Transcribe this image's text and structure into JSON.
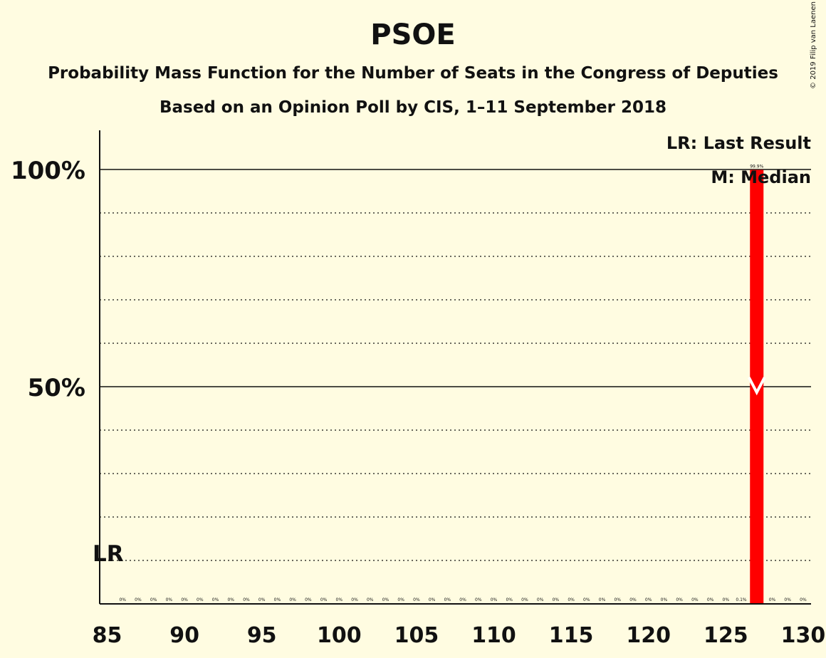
{
  "chart_data": {
    "type": "bar",
    "title": "PSOE",
    "subtitle_lines": [
      "Probability Mass Function for the Number of Seats in the Congress of Deputies",
      "Based on an Opinion Poll by CIS, 1–11 September 2018"
    ],
    "copyright": "© 2019 Filip van Laenen",
    "xlim": [
      85,
      130
    ],
    "ylim": [
      0,
      100
    ],
    "x_ticks": [
      85,
      90,
      95,
      100,
      105,
      110,
      115,
      120,
      125,
      130
    ],
    "y_ticks": [
      {
        "value": 50,
        "label": "50%"
      },
      {
        "value": 100,
        "label": "100%"
      }
    ],
    "gridlines_dotted": [
      10,
      20,
      30,
      40,
      60,
      70,
      80,
      90
    ],
    "categories": [
      86,
      87,
      88,
      89,
      90,
      91,
      92,
      93,
      94,
      95,
      96,
      97,
      98,
      99,
      100,
      101,
      102,
      103,
      104,
      105,
      106,
      107,
      108,
      109,
      110,
      111,
      112,
      113,
      114,
      115,
      116,
      117,
      118,
      119,
      120,
      121,
      122,
      123,
      124,
      125,
      126,
      127,
      128,
      129,
      130
    ],
    "values": [
      0,
      0,
      0,
      0,
      0,
      0,
      0,
      0,
      0,
      0,
      0,
      0,
      0,
      0,
      0,
      0,
      0,
      0,
      0,
      0,
      0,
      0,
      0,
      0,
      0,
      0,
      0,
      0,
      0,
      0,
      0,
      0,
      0,
      0,
      0,
      0,
      0,
      0,
      0,
      0,
      0.1,
      99.9,
      0,
      0,
      0
    ],
    "bar_labels": [
      "0%",
      "0%",
      "0%",
      "0%",
      "0%",
      "0%",
      "0%",
      "0%",
      "0%",
      "0%",
      "0%",
      "0%",
      "0%",
      "0%",
      "0%",
      "0%",
      "0%",
      "0%",
      "0%",
      "0%",
      "0%",
      "0%",
      "0%",
      "0%",
      "0%",
      "0%",
      "0%",
      "0%",
      "0%",
      "0%",
      "0%",
      "0%",
      "0%",
      "0%",
      "0%",
      "0%",
      "0%",
      "0%",
      "0%",
      "0%",
      "0.1%",
      "99.9%",
      "0%",
      "0%",
      "0%"
    ],
    "bar_color": "#FF0000",
    "last_result": {
      "seats": 85,
      "label": "LR"
    },
    "median": {
      "seats": 127
    },
    "legend": [
      "LR: Last Result",
      "M: Median"
    ],
    "legend_position": "top-right"
  }
}
